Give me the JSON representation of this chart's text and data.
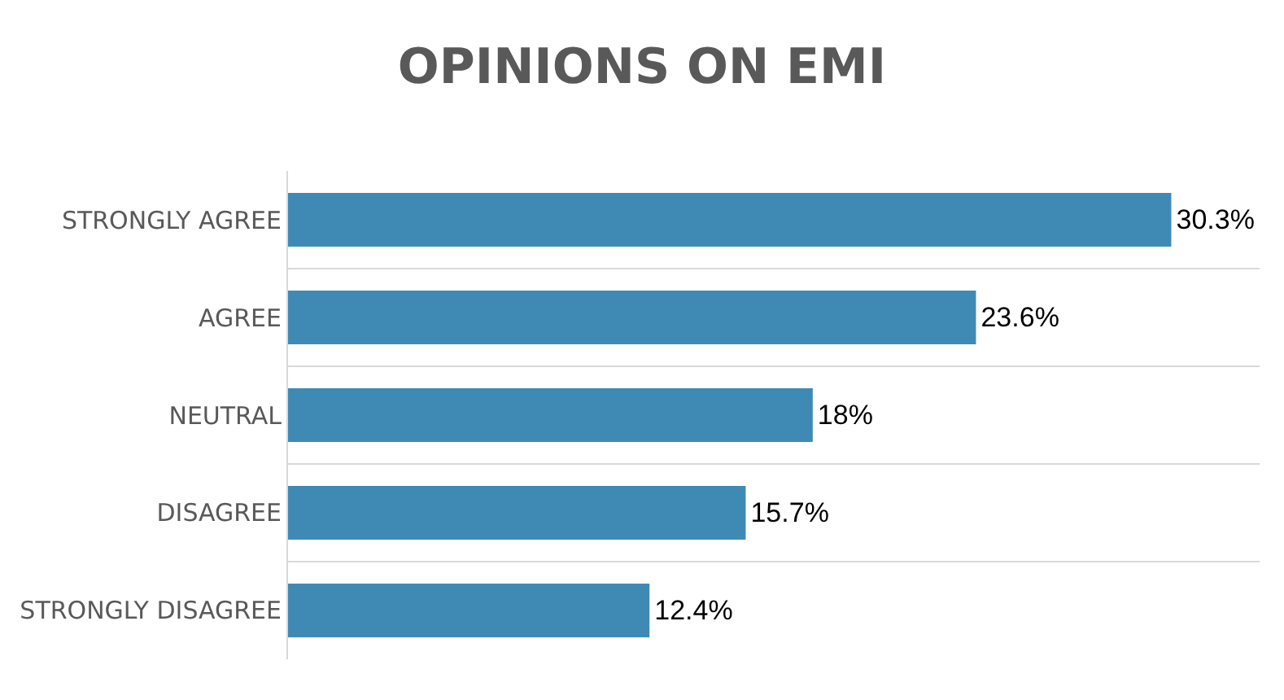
{
  "chart_data": {
    "type": "bar",
    "title": "OPINIONS ON EMI",
    "orientation": "horizontal",
    "categories": [
      "STRONGLY AGREE",
      "AGREE",
      "NEUTRAL",
      "DISAGREE",
      "STRONGLY DISAGREE"
    ],
    "values": [
      30.3,
      23.6,
      18,
      15.7,
      12.4
    ],
    "value_labels": [
      "30.3%",
      "23.6%",
      "18%",
      "15.7%",
      "12.4%"
    ],
    "color": "#3f8ab5",
    "grid": "y"
  }
}
